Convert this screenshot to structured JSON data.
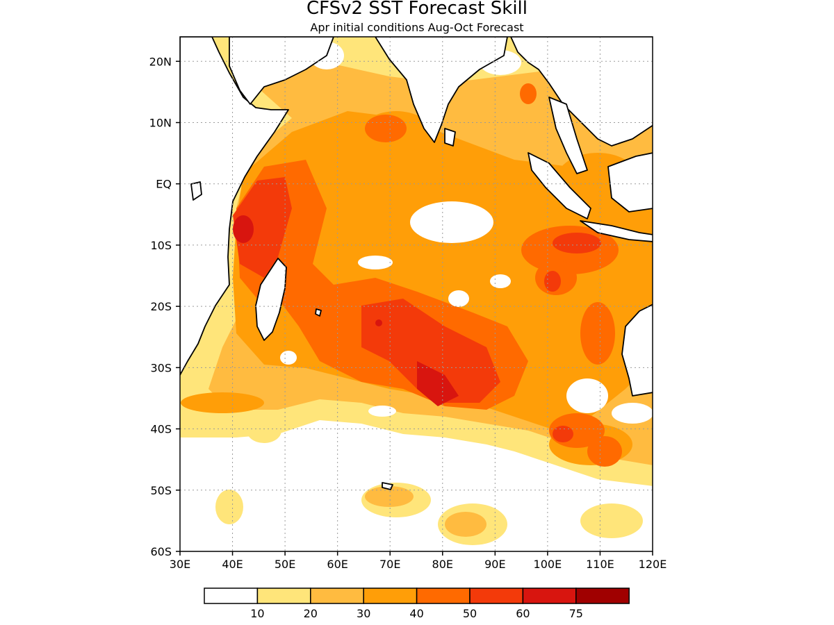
{
  "header": {
    "title": "CFSv2 SST Forecast Skill",
    "subtitle": "Apr initial conditions  Aug-Oct Forecast"
  },
  "map": {
    "lon_range": [
      30,
      120
    ],
    "lat_range": [
      -60,
      24
    ],
    "lon_ticks": [
      {
        "value": 30,
        "label": "30E"
      },
      {
        "value": 40,
        "label": "40E"
      },
      {
        "value": 50,
        "label": "50E"
      },
      {
        "value": 60,
        "label": "60E"
      },
      {
        "value": 70,
        "label": "70E"
      },
      {
        "value": 80,
        "label": "80E"
      },
      {
        "value": 90,
        "label": "90E"
      },
      {
        "value": 100,
        "label": "100E"
      },
      {
        "value": 110,
        "label": "110E"
      },
      {
        "value": 120,
        "label": "120E"
      }
    ],
    "lat_ticks": [
      {
        "value": 20,
        "label": "20N"
      },
      {
        "value": 10,
        "label": "10N"
      },
      {
        "value": 0,
        "label": "EQ"
      },
      {
        "value": -10,
        "label": "10S"
      },
      {
        "value": -20,
        "label": "20S"
      },
      {
        "value": -30,
        "label": "30S"
      },
      {
        "value": -40,
        "label": "40S"
      },
      {
        "value": -50,
        "label": "50S"
      },
      {
        "value": -60,
        "label": "60S"
      }
    ],
    "grid": "dotted"
  },
  "legend": {
    "colors": [
      "#ffffff",
      "#ffe57a",
      "#ffbb40",
      "#ff9e08",
      "#ff6a00",
      "#f33a0a",
      "#d8150f",
      "#a00000"
    ],
    "labels": [
      "10",
      "20",
      "30",
      "40",
      "50",
      "60",
      "75"
    ]
  }
}
